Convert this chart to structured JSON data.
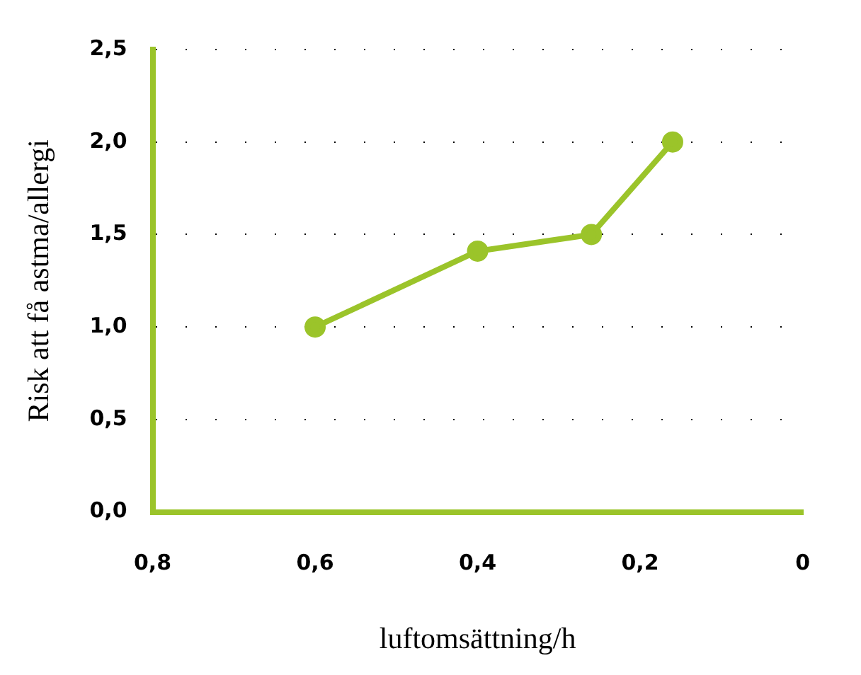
{
  "chart_data": {
    "type": "line",
    "xlabel": "luftomsättning/h",
    "ylabel": "Risk att få astma/allergi",
    "x": [
      0.6,
      0.4,
      0.26,
      0.16
    ],
    "series": [
      {
        "color": "#9bc42a",
        "values": [
          1.0,
          1.41,
          1.5,
          2.0
        ]
      }
    ],
    "xlim": [
      0.8,
      0
    ],
    "xticks": [
      {
        "value": 0.8,
        "label": "0,8"
      },
      {
        "value": 0.6,
        "label": "0,6"
      },
      {
        "value": 0.4,
        "label": "0,4"
      },
      {
        "value": 0.2,
        "label": "0,2"
      },
      0
    ],
    "ylim": [
      0,
      2.5
    ],
    "yticks": [
      {
        "value": 0,
        "label": "0,0"
      },
      {
        "value": 0.5,
        "label": "0,5"
      },
      {
        "value": 1,
        "label": "1,0"
      },
      {
        "value": 1.5,
        "label": "1,5"
      },
      {
        "value": 2,
        "label": "2,0"
      },
      {
        "value": 2.5,
        "label": "2,5"
      }
    ],
    "grid": "y",
    "marker": "circle",
    "line_style": "solid",
    "legend": false
  }
}
